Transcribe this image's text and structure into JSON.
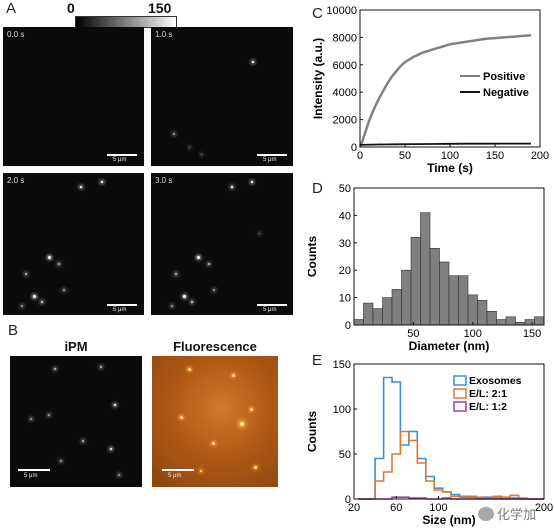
{
  "panel_labels": {
    "a": "A",
    "b": "B",
    "c": "C",
    "d": "D",
    "e": "E"
  },
  "colorbar": {
    "min_label": "0",
    "max_label": "150"
  },
  "panel_a": {
    "frames": [
      {
        "time": "0.0 s",
        "scale": "5 μm"
      },
      {
        "time": "1.0 s",
        "scale": "5 μm"
      },
      {
        "time": "2.0 s",
        "scale": "5 μm"
      },
      {
        "time": "3.0 s",
        "scale": "5 μm"
      }
    ]
  },
  "panel_b": {
    "left_title": "iPM",
    "right_title": "Fluorescence",
    "left_scale": "5 μm",
    "right_scale": "5 μm"
  },
  "watermark": "化学加",
  "colors": {
    "positive": "#808080",
    "negative": "#111111",
    "bars": "#808080",
    "exosomes": "#3a8fd6",
    "el21": "#e8742a",
    "el12": "#9b3fbf",
    "fluor_bg": "#b8621a"
  },
  "chart_data": [
    {
      "type": "line",
      "xlabel": "Time (s)",
      "ylabel": "Intensity (a.u.)",
      "xlim": [
        0,
        200
      ],
      "ylim": [
        0,
        10000
      ],
      "xticks": [
        0,
        50,
        100,
        150,
        200
      ],
      "yticks": [
        0,
        2000,
        4000,
        6000,
        8000,
        10000
      ],
      "legend_position": "right",
      "series": [
        {
          "name": "Positive",
          "x": [
            0,
            2,
            5,
            8,
            10,
            15,
            20,
            25,
            30,
            35,
            40,
            45,
            50,
            60,
            70,
            80,
            90,
            100,
            110,
            120,
            130,
            140,
            150,
            160,
            170,
            180,
            190
          ],
          "y": [
            0,
            300,
            900,
            1500,
            1900,
            2700,
            3400,
            4000,
            4600,
            5100,
            5500,
            5900,
            6200,
            6600,
            6900,
            7100,
            7300,
            7500,
            7600,
            7700,
            7800,
            7900,
            7950,
            8000,
            8050,
            8100,
            8150
          ]
        },
        {
          "name": "Negative",
          "x": [
            0,
            20,
            40,
            60,
            80,
            100,
            120,
            140,
            160,
            180,
            190
          ],
          "y": [
            150,
            180,
            200,
            210,
            220,
            230,
            240,
            240,
            250,
            250,
            250
          ]
        }
      ]
    },
    {
      "type": "bar",
      "xlabel": "Diameter (nm)",
      "ylabel": "Counts",
      "xlim": [
        0,
        160
      ],
      "ylim": [
        0,
        50
      ],
      "xticks": [
        50,
        100,
        150
      ],
      "yticks": [
        0,
        10,
        20,
        30,
        40,
        50
      ],
      "bin_width": 8,
      "bin_starts": [
        0,
        8,
        16,
        24,
        32,
        40,
        48,
        56,
        64,
        72,
        80,
        88,
        96,
        104,
        112,
        120,
        128,
        136,
        144,
        152
      ],
      "values": [
        2,
        8,
        6,
        10,
        13,
        20,
        32,
        41,
        28,
        23,
        18,
        18,
        11,
        9,
        5,
        2,
        3,
        1,
        2,
        3
      ]
    },
    {
      "type": "line",
      "xlabel": "Size (nm)",
      "ylabel": "Counts",
      "xlim": [
        20,
        200
      ],
      "ylim": [
        0,
        150
      ],
      "xticks": [
        20,
        60,
        100,
        200
      ],
      "yticks": [
        0,
        50,
        100,
        150
      ],
      "legend_position": "top-right",
      "bin_width": 8,
      "bin_starts": [
        24,
        32,
        40,
        48,
        56,
        64,
        72,
        80,
        88,
        96,
        104,
        112,
        120,
        128,
        136,
        144,
        152,
        160,
        168,
        176,
        184,
        192
      ],
      "series": [
        {
          "name": "Exosomes",
          "values": [
            0,
            0,
            45,
            135,
            130,
            60,
            75,
            45,
            25,
            12,
            8,
            5,
            3,
            2,
            1,
            2,
            1,
            0,
            1,
            0,
            0,
            0
          ]
        },
        {
          "name": "E/L: 2:1",
          "values": [
            0,
            0,
            20,
            30,
            50,
            75,
            65,
            40,
            20,
            10,
            8,
            3,
            2,
            3,
            2,
            1,
            3,
            2,
            4,
            1,
            0,
            0
          ]
        },
        {
          "name": "E/L: 1:2",
          "values": [
            0,
            0,
            0,
            0,
            2,
            2,
            1,
            1,
            0,
            0,
            1,
            0,
            0,
            0,
            0,
            0,
            0,
            0,
            0,
            0,
            0,
            0
          ]
        }
      ]
    }
  ]
}
